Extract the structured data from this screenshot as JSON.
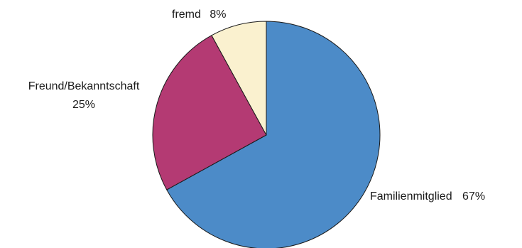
{
  "chart_data": {
    "type": "pie",
    "slices": [
      {
        "label": "Familienmitglied",
        "value": 67,
        "value_label": "67%",
        "color": "#4c8bc8"
      },
      {
        "label": "Freund/Bekanntschaft",
        "value": 25,
        "value_label": "25%",
        "color": "#b43a73"
      },
      {
        "label": "fremd",
        "value": 8,
        "value_label": "8%",
        "color": "#faf1cf"
      }
    ],
    "start": "12 o'clock",
    "direction": "clockwise",
    "legend": "none"
  }
}
